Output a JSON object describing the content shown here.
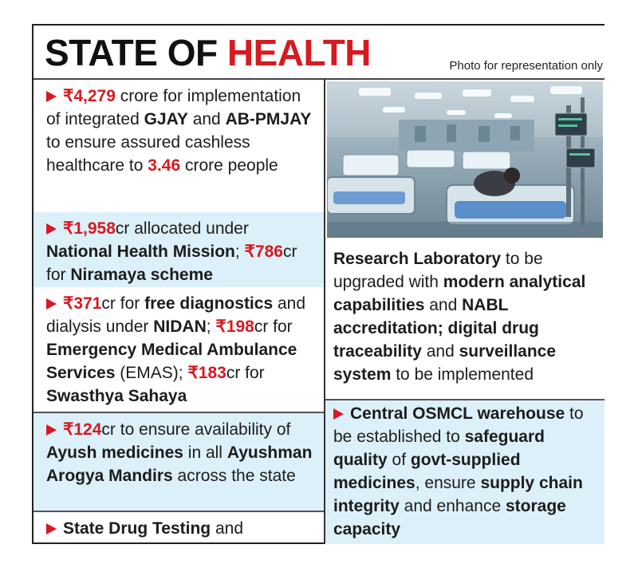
{
  "header": {
    "title_part1": "STATE OF ",
    "title_part2": "HEALTH",
    "photo_note": "Photo for representation only"
  },
  "photo": {
    "description_icon": "hospital-ward-photo"
  },
  "left_items": [
    {
      "id": "item1",
      "highlight": false,
      "segments": [
        {
          "t": "₹4,279",
          "s": "red"
        },
        {
          "t": " crore for implementation of integrated ",
          "s": ""
        },
        {
          "t": "GJAY",
          "s": "b"
        },
        {
          "t": " and ",
          "s": ""
        },
        {
          "t": "AB-PMJAY",
          "s": "b"
        },
        {
          "t": " to ensure assured cashless healthcare to ",
          "s": ""
        },
        {
          "t": "3.46",
          "s": "red"
        },
        {
          "t": " crore people",
          "s": ""
        }
      ]
    },
    {
      "id": "item2",
      "highlight": true,
      "segments": [
        {
          "t": "₹1,958",
          "s": "red"
        },
        {
          "t": "cr allocated under ",
          "s": ""
        },
        {
          "t": "National Health Mission",
          "s": "b"
        },
        {
          "t": "; ",
          "s": ""
        },
        {
          "t": "₹786",
          "s": "red"
        },
        {
          "t": "cr for ",
          "s": ""
        },
        {
          "t": "Niramaya scheme",
          "s": "b"
        }
      ]
    },
    {
      "id": "item3",
      "highlight": false,
      "segments": [
        {
          "t": "₹371",
          "s": "red"
        },
        {
          "t": "cr for ",
          "s": ""
        },
        {
          "t": "free diagnostics",
          "s": "b"
        },
        {
          "t": " and dialysis under ",
          "s": ""
        },
        {
          "t": "NIDAN",
          "s": "b"
        },
        {
          "t": "; ",
          "s": ""
        },
        {
          "t": "₹198",
          "s": "red"
        },
        {
          "t": "cr for ",
          "s": ""
        },
        {
          "t": "Emergency Medical Ambulance Services",
          "s": "b"
        },
        {
          "t": " (EMAS); ",
          "s": ""
        },
        {
          "t": "₹183",
          "s": "red"
        },
        {
          "t": "cr for ",
          "s": ""
        },
        {
          "t": "Swasthya Sahaya",
          "s": "b"
        }
      ]
    },
    {
      "id": "item4",
      "highlight": true,
      "segments": [
        {
          "t": "₹124",
          "s": "red"
        },
        {
          "t": "cr to ensure availability of ",
          "s": ""
        },
        {
          "t": "Ayush medicines",
          "s": "b"
        },
        {
          "t": " in all ",
          "s": ""
        },
        {
          "t": "Ayushman Arogya Mandirs",
          "s": "b"
        },
        {
          "t": " across the state",
          "s": ""
        }
      ]
    },
    {
      "id": "item5",
      "highlight": false,
      "segments": [
        {
          "t": "State Drug Testing",
          "s": "b"
        },
        {
          "t": " and",
          "s": ""
        }
      ]
    }
  ],
  "right_continuation": {
    "segments": [
      {
        "t": "Research Laboratory",
        "s": "b"
      },
      {
        "t": " to be upgraded with ",
        "s": ""
      },
      {
        "t": "modern analytical capabilities",
        "s": "b"
      },
      {
        "t": " and ",
        "s": ""
      },
      {
        "t": "NABL accreditation; digital drug traceability",
        "s": "b"
      },
      {
        "t": " and ",
        "s": ""
      },
      {
        "t": "surveillance system",
        "s": "b"
      },
      {
        "t": " to be implemented",
        "s": ""
      }
    ]
  },
  "right_item": {
    "segments": [
      {
        "t": "Central OSMCL warehouse",
        "s": "b"
      },
      {
        "t": " to be established to ",
        "s": ""
      },
      {
        "t": "safeguard quality",
        "s": "b"
      },
      {
        "t": " of ",
        "s": ""
      },
      {
        "t": "govt-supplied medicines",
        "s": "b"
      },
      {
        "t": ", ensure ",
        "s": ""
      },
      {
        "t": "supply chain integrity",
        "s": "b"
      },
      {
        "t": " and enhance ",
        "s": ""
      },
      {
        "t": "storage capacity",
        "s": "b"
      }
    ]
  },
  "colors": {
    "accent_red": "#d71920",
    "highlight_blue": "#dcf0fa",
    "text": "#1c1c1c"
  }
}
